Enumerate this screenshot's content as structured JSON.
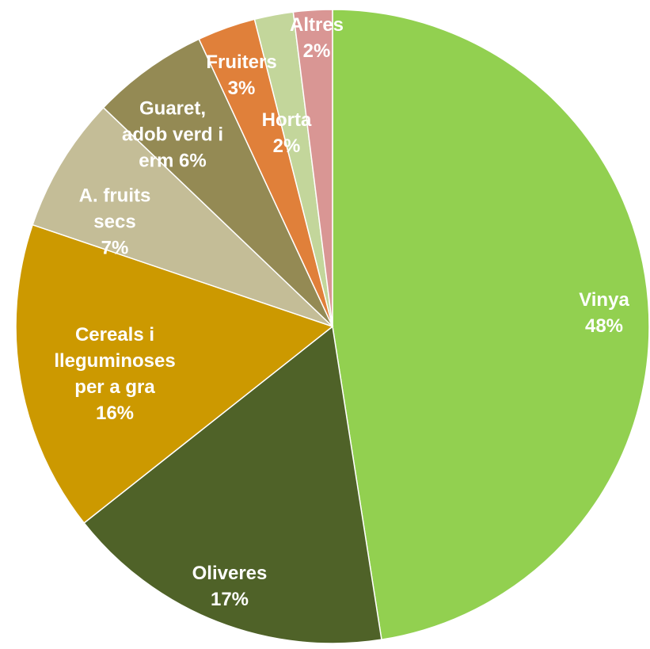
{
  "chart_data": {
    "type": "pie",
    "categories": [
      "Vinya",
      "Oliveres",
      "Cereals i lleguminoses per a gra",
      "A. fruits secs",
      "Guaret, adob verd i erm",
      "Fruiters",
      "Horta",
      "Altres"
    ],
    "values": [
      48,
      17,
      16,
      7,
      6,
      3,
      2,
      2
    ],
    "value_labels": [
      "48%",
      "17%",
      "16%",
      "7%",
      "6%",
      "3%",
      "2%",
      "2%"
    ],
    "colors": [
      "#92d050",
      "#4f6228",
      "#cc9900",
      "#c4bd97",
      "#948a54",
      "#e0803a",
      "#c3d69b",
      "#d99694"
    ]
  }
}
